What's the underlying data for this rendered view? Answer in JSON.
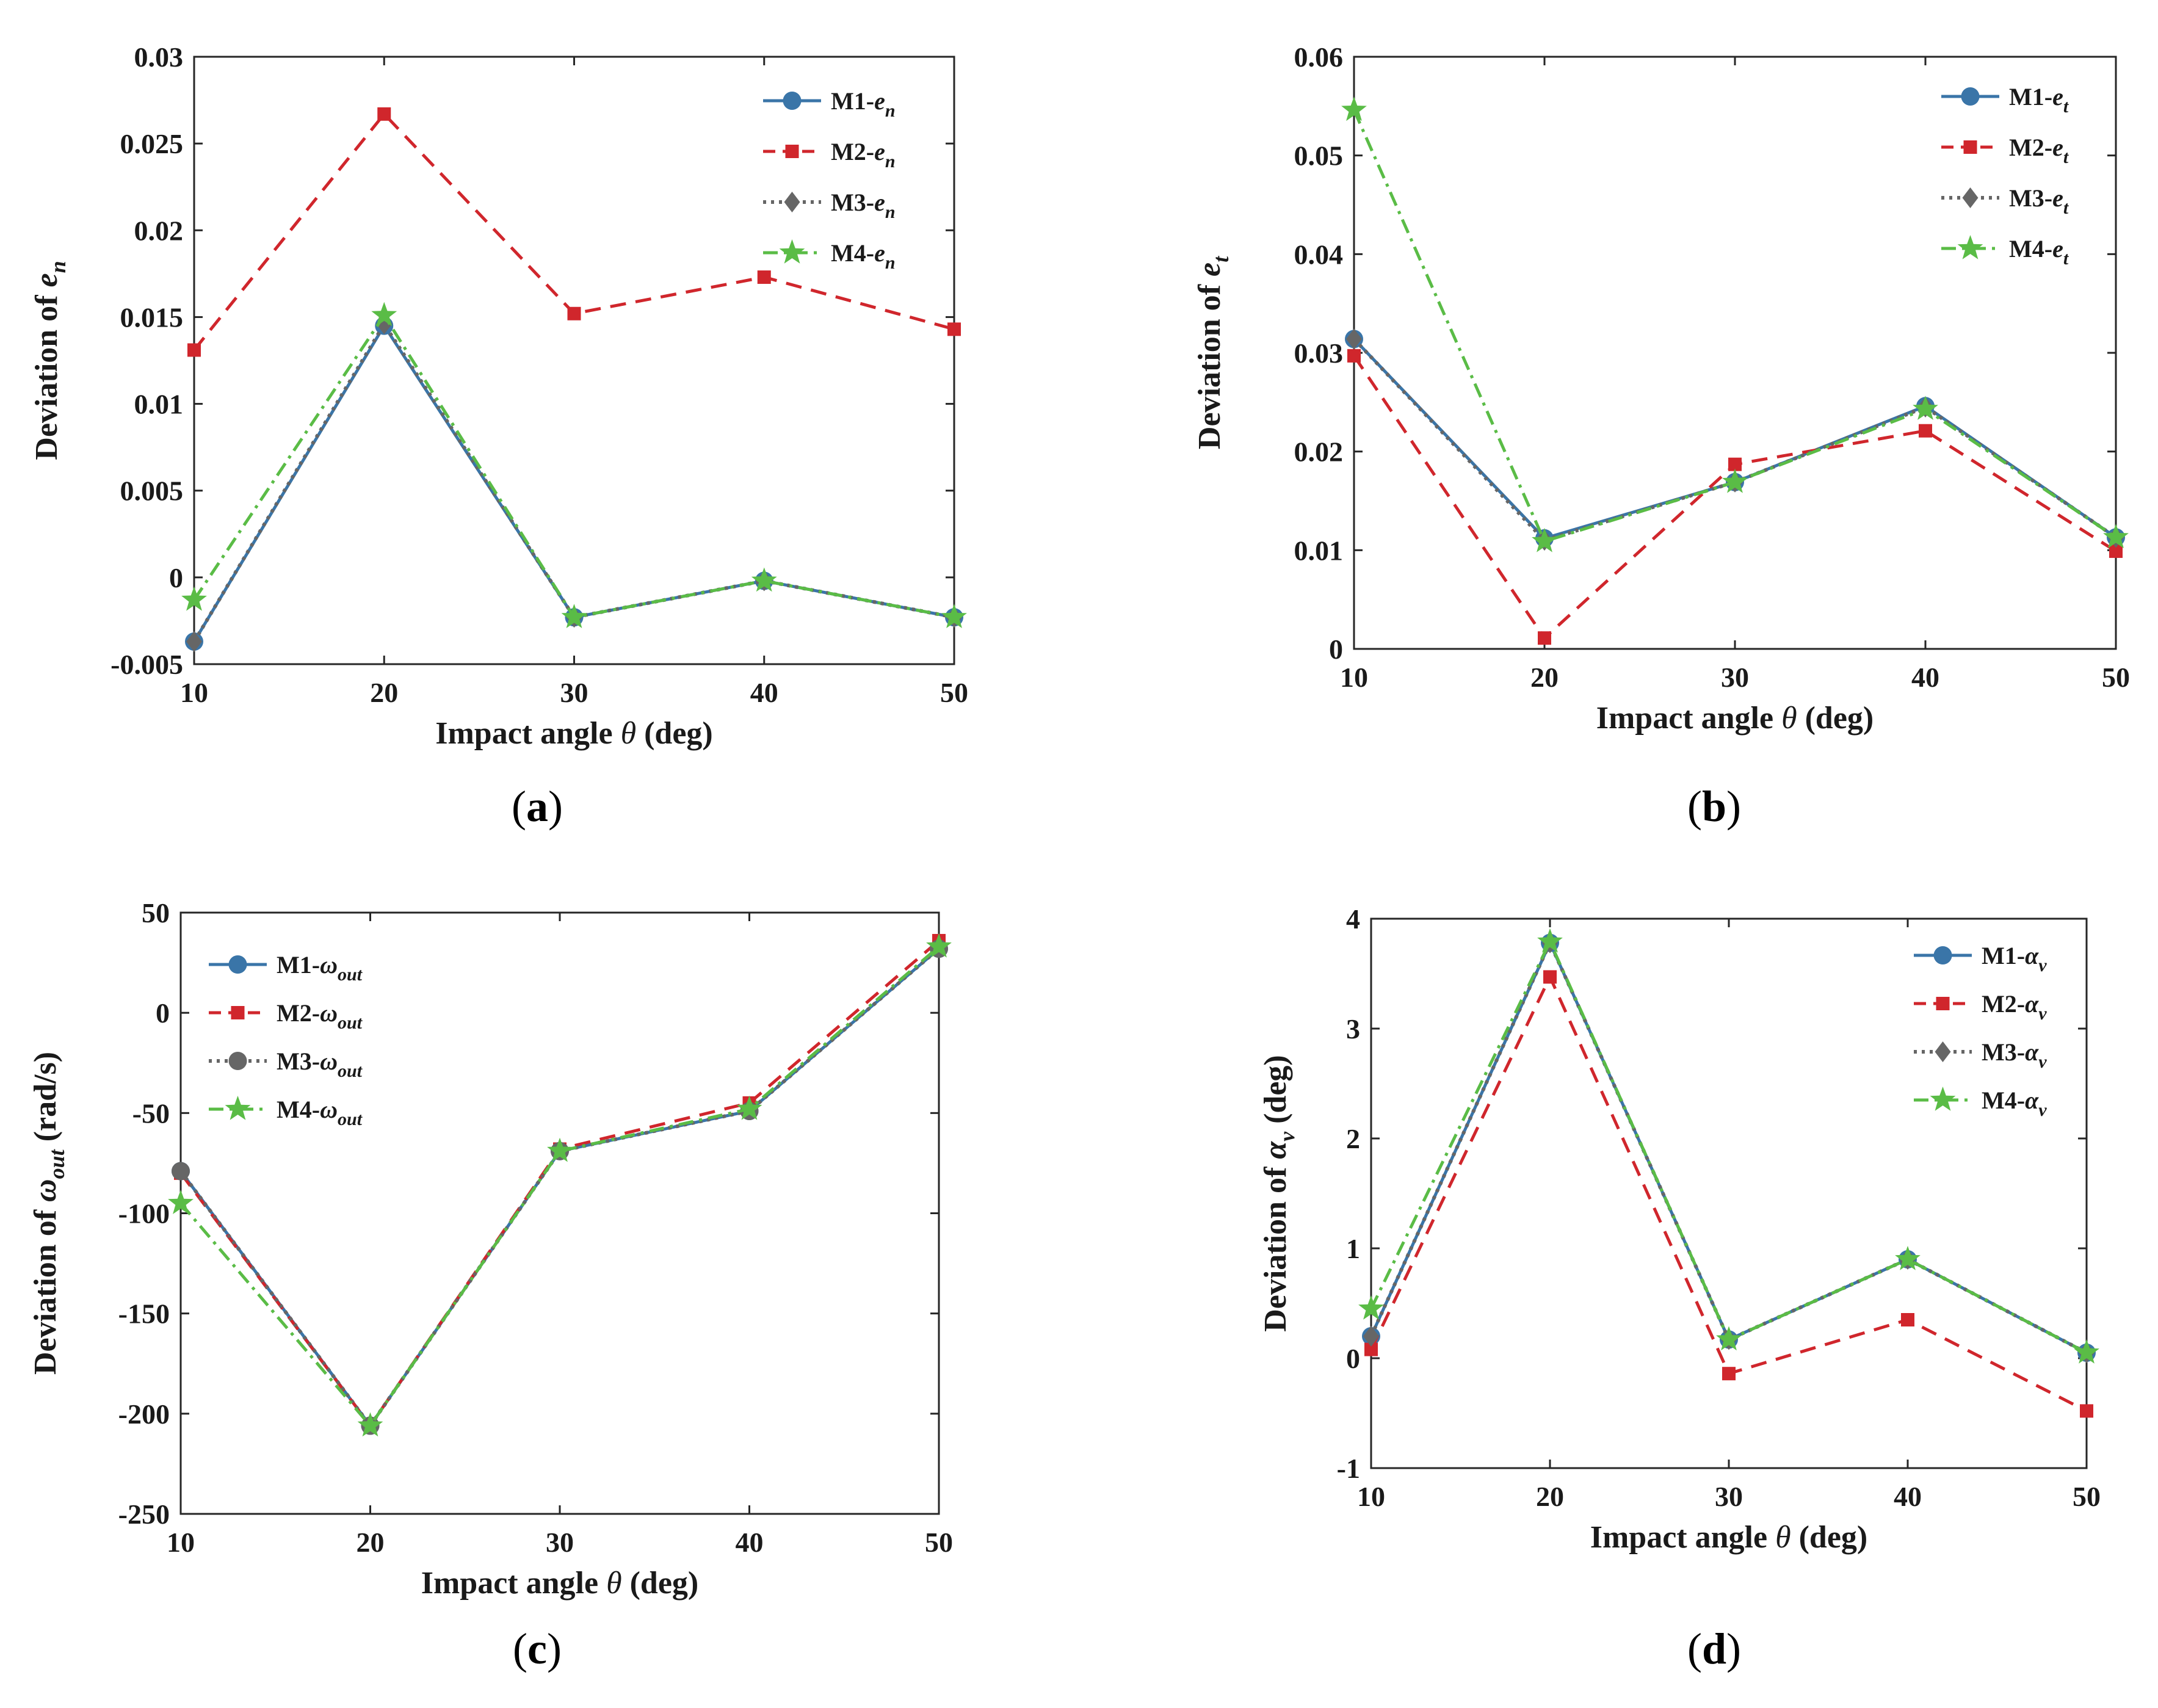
{
  "chart_data": [
    {
      "id": "a",
      "type": "line",
      "caption": "a",
      "xlabel": "Impact angle θ (deg)",
      "ylabel": "Deviation of e_n",
      "ylabel_parts": {
        "prefix": "Deviation of ",
        "sym": "e",
        "sub": "n",
        "suffix": ""
      },
      "x": [
        10,
        20,
        30,
        40,
        50
      ],
      "xlim": [
        10,
        50
      ],
      "ylim": [
        -0.005,
        0.03
      ],
      "xticks": [
        "10",
        "20",
        "30",
        "40",
        "50"
      ],
      "yticks": [
        {
          "v": -0.005,
          "label": "-0.005"
        },
        {
          "v": 0,
          "label": "0"
        },
        {
          "v": 0.005,
          "label": "0.005"
        },
        {
          "v": 0.01,
          "label": "0.01"
        },
        {
          "v": 0.015,
          "label": "0.015"
        },
        {
          "v": 0.02,
          "label": "0.02"
        },
        {
          "v": 0.025,
          "label": "0.025"
        },
        {
          "v": 0.03,
          "label": "0.03"
        }
      ],
      "legend_position": "top-right",
      "series": [
        {
          "name": "M1",
          "sym": "e",
          "sub": "n",
          "style": "m1",
          "values": [
            -0.0037,
            0.0145,
            -0.0023,
            -0.0002,
            -0.0023
          ]
        },
        {
          "name": "M2",
          "sym": "e",
          "sub": "n",
          "style": "m2",
          "values": [
            0.0131,
            0.0267,
            0.0152,
            0.0173,
            0.0143
          ]
        },
        {
          "name": "M3",
          "sym": "e",
          "sub": "n",
          "style": "m3",
          "values": [
            -0.0037,
            0.0146,
            -0.0023,
            -0.0002,
            -0.0023
          ]
        },
        {
          "name": "M4",
          "sym": "e",
          "sub": "n",
          "style": "m4",
          "values": [
            -0.0013,
            0.0151,
            -0.0023,
            -0.0002,
            -0.0023
          ]
        }
      ]
    },
    {
      "id": "b",
      "type": "line",
      "caption": "b",
      "xlabel": "Impact angle θ (deg)",
      "ylabel": "Deviation of e_t",
      "ylabel_parts": {
        "prefix": "Deviation of ",
        "sym": "e",
        "sub": "t",
        "suffix": ""
      },
      "x": [
        10,
        20,
        30,
        40,
        50
      ],
      "xlim": [
        10,
        50
      ],
      "ylim": [
        0,
        0.06
      ],
      "xticks": [
        "10",
        "20",
        "30",
        "40",
        "50"
      ],
      "yticks": [
        {
          "v": 0,
          "label": "0"
        },
        {
          "v": 0.01,
          "label": "0.01"
        },
        {
          "v": 0.02,
          "label": "0.02"
        },
        {
          "v": 0.03,
          "label": "0.03"
        },
        {
          "v": 0.04,
          "label": "0.04"
        },
        {
          "v": 0.05,
          "label": "0.05"
        },
        {
          "v": 0.06,
          "label": "0.06"
        }
      ],
      "legend_position": "top-right",
      "series": [
        {
          "name": "M1",
          "sym": "e",
          "sub": "t",
          "style": "m1",
          "values": [
            0.0314,
            0.0112,
            0.0169,
            0.0246,
            0.0113
          ]
        },
        {
          "name": "M2",
          "sym": "e",
          "sub": "t",
          "style": "m2",
          "values": [
            0.0297,
            0.0011,
            0.0187,
            0.0221,
            0.0099
          ]
        },
        {
          "name": "M3",
          "sym": "e",
          "sub": "t",
          "style": "m3",
          "values": [
            0.0314,
            0.011,
            0.0169,
            0.0245,
            0.0113
          ]
        },
        {
          "name": "M4",
          "sym": "e",
          "sub": "t",
          "style": "m4",
          "values": [
            0.0546,
            0.0109,
            0.0169,
            0.0243,
            0.0113
          ]
        }
      ]
    },
    {
      "id": "c",
      "type": "line",
      "caption": "c",
      "xlabel": "Impact angle θ (deg)",
      "ylabel": "Deviation of ω_out (rad/s)",
      "ylabel_parts": {
        "prefix": "Deviation of ",
        "sym": "ω",
        "sub": "out",
        "suffix": " (rad/s)"
      },
      "x": [
        10,
        20,
        30,
        40,
        50
      ],
      "xlim": [
        10,
        50
      ],
      "ylim": [
        -250,
        50
      ],
      "xticks": [
        "10",
        "20",
        "30",
        "40",
        "50"
      ],
      "yticks": [
        {
          "v": -250,
          "label": "-250"
        },
        {
          "v": -200,
          "label": "-200"
        },
        {
          "v": -150,
          "label": "-150"
        },
        {
          "v": -100,
          "label": "-100"
        },
        {
          "v": -50,
          "label": "-50"
        },
        {
          "v": 0,
          "label": "0"
        },
        {
          "v": 50,
          "label": "50"
        }
      ],
      "legend_position": "top-left",
      "series": [
        {
          "name": "M1",
          "sym": "ω",
          "sub": "out",
          "style": "m1",
          "values": [
            -79,
            -206,
            -69,
            -49,
            32
          ]
        },
        {
          "name": "M2",
          "sym": "ω",
          "sub": "out",
          "style": "m2",
          "values": [
            -80,
            -206,
            -68,
            -45,
            36
          ]
        },
        {
          "name": "M3",
          "sym": "ω",
          "sub": "out",
          "style": "m3c",
          "values": [
            -79,
            -206,
            -69,
            -49,
            32
          ]
        },
        {
          "name": "M4",
          "sym": "ω",
          "sub": "out",
          "style": "m4",
          "values": [
            -95,
            -206,
            -69,
            -48,
            33
          ]
        }
      ]
    },
    {
      "id": "d",
      "type": "line",
      "caption": "d",
      "xlabel": "Impact angle θ (deg)",
      "ylabel": "Deviation of α_v (deg)",
      "ylabel_parts": {
        "prefix": "Deviation of ",
        "sym": "α",
        "sub": "v",
        "suffix": " (deg)"
      },
      "x": [
        10,
        20,
        30,
        40,
        50
      ],
      "xlim": [
        10,
        50
      ],
      "ylim": [
        -1,
        4
      ],
      "xticks": [
        "10",
        "20",
        "30",
        "40",
        "50"
      ],
      "yticks": [
        {
          "v": -1,
          "label": "-1"
        },
        {
          "v": 0,
          "label": "0"
        },
        {
          "v": 1,
          "label": "1"
        },
        {
          "v": 2,
          "label": "2"
        },
        {
          "v": 3,
          "label": "3"
        },
        {
          "v": 4,
          "label": "4"
        }
      ],
      "legend_position": "top-right",
      "series": [
        {
          "name": "M1",
          "sym": "α",
          "sub": "v",
          "style": "m1",
          "values": [
            0.2,
            3.78,
            0.17,
            0.9,
            0.05
          ]
        },
        {
          "name": "M2",
          "sym": "α",
          "sub": "v",
          "style": "m2",
          "values": [
            0.08,
            3.47,
            -0.14,
            0.35,
            -0.48
          ]
        },
        {
          "name": "M3",
          "sym": "α",
          "sub": "v",
          "style": "m3",
          "values": [
            0.2,
            3.78,
            0.17,
            0.9,
            0.05
          ]
        },
        {
          "name": "M4",
          "sym": "α",
          "sub": "v",
          "style": "m4",
          "values": [
            0.45,
            3.79,
            0.17,
            0.9,
            0.05
          ]
        }
      ]
    }
  ],
  "colors": {
    "m1": "#3a75a8",
    "m2": "#d0262c",
    "m3": "#666666",
    "m4": "#5abc46"
  }
}
